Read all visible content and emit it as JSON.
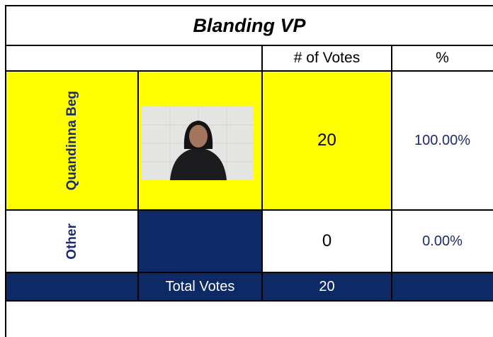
{
  "title": "Blanding VP",
  "table": {
    "header": [
      "# of Votes",
      "%"
    ],
    "rows": [
      [
        "Quandinna Beg",
        20,
        "100.00%"
      ],
      [
        "Other",
        0,
        "0.00%"
      ]
    ],
    "total": {
      "label": "Total Votes",
      "votes": 20
    }
  }
}
